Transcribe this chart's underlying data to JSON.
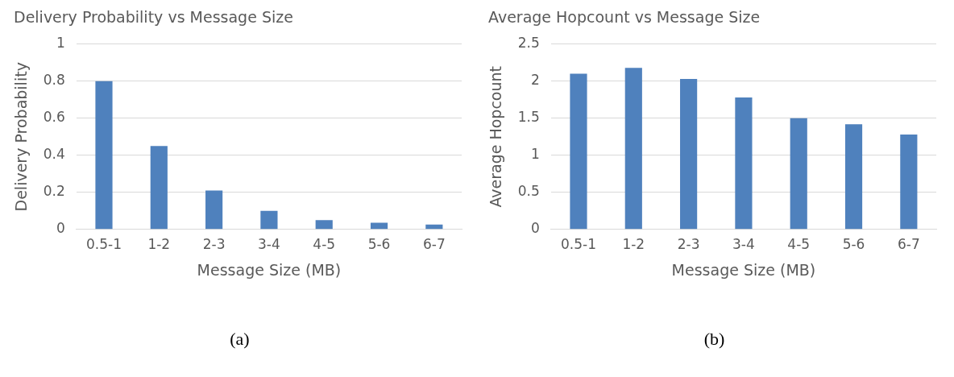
{
  "chart_data": [
    {
      "type": "bar",
      "title": "Delivery Probability vs Message Size",
      "xlabel": "Message Size (MB)",
      "ylabel": "Delivery Probability",
      "categories": [
        "0.5-1",
        "1-2",
        "2-3",
        "3-4",
        "4-5",
        "5-6",
        "6-7"
      ],
      "values": [
        0.8,
        0.45,
        0.21,
        0.1,
        0.05,
        0.036,
        0.026
      ],
      "color": "#4f81bd",
      "ylim": [
        0,
        1
      ],
      "yticks": [
        0,
        0.2,
        0.4,
        0.6,
        0.8,
        1
      ],
      "grid": "y",
      "legend": false,
      "annotations": [
        "(a)"
      ]
    },
    {
      "type": "bar",
      "title": "Average Hopcount vs Message Size",
      "xlabel": "Message Size (MB)",
      "ylabel": "Average Hopcount",
      "categories": [
        "0.5-1",
        "1-2",
        "2-3",
        "3-4",
        "4-5",
        "5-6",
        "6-7"
      ],
      "values": [
        2.1,
        2.18,
        2.03,
        1.78,
        1.5,
        1.42,
        1.28
      ],
      "color": "#4f81bd",
      "ylim": [
        0,
        2.5
      ],
      "yticks": [
        0,
        0.5,
        1,
        1.5,
        2,
        2.5
      ],
      "grid": "y",
      "legend": false,
      "annotations": [
        "(b)"
      ]
    }
  ]
}
